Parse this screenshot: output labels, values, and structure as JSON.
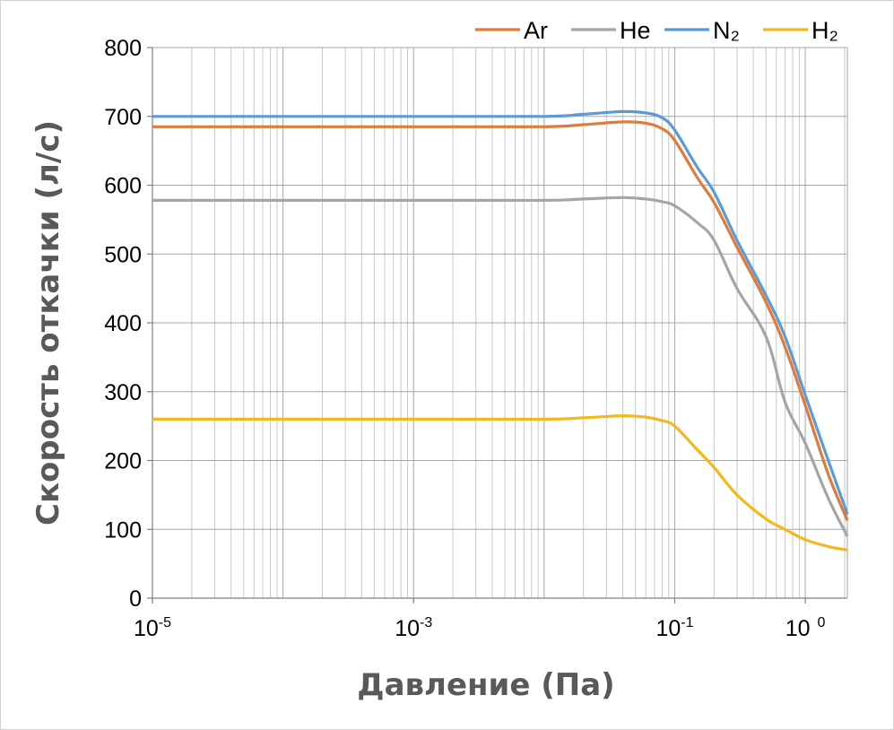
{
  "chart_data": {
    "type": "line",
    "xlabel": "Давление (Па)",
    "ylabel": "Скорость откачки (л/с)",
    "x_scale": "log",
    "xlim": [
      1e-05,
      2.1
    ],
    "ylim": [
      0,
      800
    ],
    "y_ticks": [
      "0",
      "100",
      "200",
      "300",
      "400",
      "500",
      "600",
      "700",
      "800"
    ],
    "x_ticks": [
      {
        "value": 1e-05,
        "base": "10",
        "exp": "-5"
      },
      {
        "value": 0.001,
        "base": "10",
        "exp": "-3"
      },
      {
        "value": 0.1,
        "base": "10",
        "exp": "-1"
      },
      {
        "value": 1,
        "base": "10",
        "exp": "0"
      }
    ],
    "grid": true,
    "legend_position": "top-right",
    "series": [
      {
        "name": "Ar",
        "color": "#E07B39",
        "x": [
          1e-05,
          0.001,
          0.01,
          0.02,
          0.04,
          0.06,
          0.08,
          0.1,
          0.15,
          0.2,
          0.3,
          0.5,
          0.7,
          1,
          1.5,
          2.1
        ],
        "y": [
          685,
          685,
          685,
          688,
          692,
          690,
          682,
          665,
          610,
          575,
          510,
          430,
          365,
          280,
          180,
          113
        ]
      },
      {
        "name": "He",
        "color": "#A5A5A5",
        "x": [
          1e-05,
          0.001,
          0.01,
          0.02,
          0.04,
          0.06,
          0.08,
          0.1,
          0.15,
          0.2,
          0.3,
          0.5,
          0.7,
          1,
          1.5,
          2.1
        ],
        "y": [
          578,
          578,
          578,
          580,
          582,
          580,
          576,
          570,
          545,
          520,
          450,
          380,
          285,
          225,
          145,
          90
        ]
      },
      {
        "name": "N₂",
        "color": "#5B9BD5",
        "x": [
          1e-05,
          0.001,
          0.01,
          0.02,
          0.04,
          0.06,
          0.08,
          0.1,
          0.15,
          0.2,
          0.3,
          0.5,
          0.7,
          1,
          1.5,
          2.1
        ],
        "y": [
          700,
          700,
          700,
          703,
          707,
          705,
          698,
          680,
          625,
          590,
          520,
          440,
          380,
          295,
          200,
          122
        ]
      },
      {
        "name": "H₂",
        "color": "#F2B81E",
        "x": [
          1e-05,
          0.001,
          0.01,
          0.02,
          0.04,
          0.06,
          0.08,
          0.1,
          0.15,
          0.2,
          0.3,
          0.5,
          0.7,
          1,
          1.5,
          2.1
        ],
        "y": [
          260,
          260,
          260,
          262,
          265,
          263,
          258,
          250,
          215,
          190,
          150,
          115,
          100,
          85,
          75,
          70
        ]
      }
    ]
  }
}
